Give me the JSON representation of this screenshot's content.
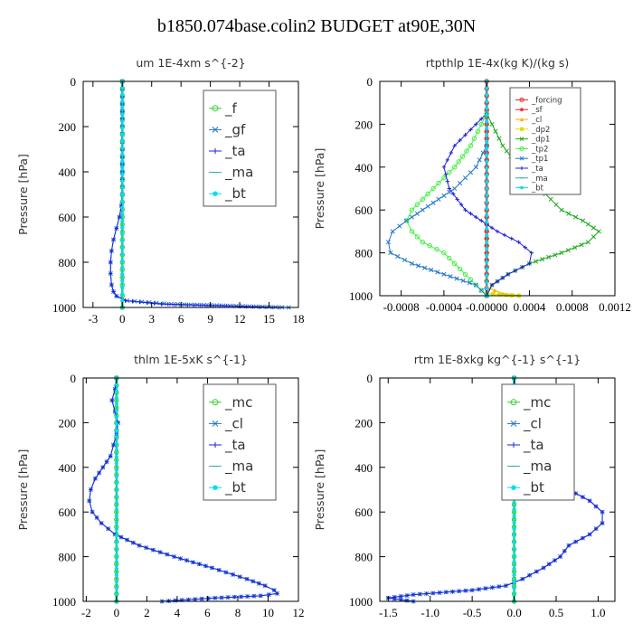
{
  "title": "b1850.074base.colin2  BUDGET at90E,30N",
  "chart_data": [
    {
      "type": "line",
      "title": "um  1E-4xm s^{-2}",
      "ylabel": "Pressure [hPa]",
      "xlim": [
        -4,
        18
      ],
      "ylim": [
        1000,
        0
      ],
      "xticks": [
        "-3",
        "0",
        "3",
        "6",
        "9",
        "12",
        "15",
        "18"
      ],
      "xtick_values": [
        -3,
        0,
        3,
        6,
        9,
        12,
        15,
        18
      ],
      "yticks": [
        "0",
        "200",
        "400",
        "600",
        "800",
        "1000"
      ],
      "legend": [
        "_f",
        "_gf",
        "_ta",
        "_ma",
        "_bt"
      ],
      "legend_size": "large",
      "series": [
        {
          "name": "_f",
          "color": "#33cc33",
          "marker": "circle",
          "p": [
            0,
            100,
            200,
            300,
            400,
            500,
            600,
            700,
            800,
            900,
            950,
            1000
          ],
          "x": [
            0,
            0,
            0,
            0,
            0,
            0,
            0,
            0,
            0,
            0,
            0,
            0
          ]
        },
        {
          "name": "_gf",
          "color": "#2277cc",
          "marker": "x",
          "p": [
            0,
            100,
            200,
            300,
            400,
            500,
            550,
            600,
            650,
            700,
            750,
            800,
            850,
            900,
            930,
            950,
            970,
            985,
            1000
          ],
          "x": [
            0,
            0,
            0,
            0,
            0,
            0,
            -0.1,
            -0.3,
            -0.6,
            -0.9,
            -1.1,
            -1.2,
            -1.2,
            -1.1,
            -0.9,
            -0.6,
            0.5,
            5,
            17
          ]
        },
        {
          "name": "_ta",
          "color": "#2222dd",
          "marker": "plus",
          "p": [
            0,
            100,
            200,
            300,
            400,
            500,
            550,
            600,
            650,
            700,
            750,
            800,
            850,
            900,
            930,
            950,
            970,
            985,
            1000
          ],
          "x": [
            0,
            0,
            0,
            0,
            0,
            0,
            -0.1,
            -0.3,
            -0.6,
            -0.9,
            -1.1,
            -1.2,
            -1.2,
            -1.1,
            -0.9,
            -0.6,
            0.3,
            4,
            16
          ]
        },
        {
          "name": "_ma",
          "color": "#33aaaa",
          "marker": "dash",
          "p": [
            0,
            500,
            1000
          ],
          "x": [
            0,
            0,
            0
          ]
        },
        {
          "name": "_bt",
          "color": "#00ddee",
          "marker": "dot",
          "p": [
            0,
            500,
            1000
          ],
          "x": [
            0,
            0,
            0
          ]
        }
      ]
    },
    {
      "type": "line",
      "title": "rtpthlp  1E-4x(kg K)/(kg s)",
      "ylabel": "Pressure [hPa]",
      "xlim": [
        -0.001,
        0.0012
      ],
      "ylim": [
        1000,
        0
      ],
      "xticks": [
        "-0.0008",
        "-0.0004",
        "-0.00000",
        "0.0004",
        "0.0008",
        "0.0012"
      ],
      "xtick_values": [
        -0.0008,
        -0.0004,
        0,
        0.0004,
        0.0008,
        0.0012
      ],
      "yticks": [
        "0",
        "200",
        "400",
        "600",
        "800",
        "1000"
      ],
      "legend": [
        "_forcing",
        "_sf",
        "_cl",
        "_dp2",
        "_dp1",
        "_tp2",
        "_tp1",
        "_ta",
        "_ma",
        "_bt"
      ],
      "legend_size": "small",
      "series": [
        {
          "name": "_forcing",
          "color": "#ee2222",
          "marker": "circle",
          "p": [
            0,
            100,
            200,
            300,
            400,
            500,
            600,
            700,
            800,
            900,
            1000
          ],
          "x": [
            0,
            0,
            0,
            0,
            0,
            0,
            0,
            0,
            0,
            0,
            0
          ]
        },
        {
          "name": "_sf",
          "color": "#ee2222",
          "marker": "star",
          "p": [
            0,
            100,
            200,
            300,
            400,
            500,
            600,
            700,
            800,
            900,
            1000
          ],
          "x": [
            0,
            0,
            0,
            0,
            0,
            0,
            0,
            0,
            0,
            0,
            0
          ]
        },
        {
          "name": "_cl",
          "color": "#ffaa00",
          "marker": "triangle",
          "p": [
            960,
            990,
            1000
          ],
          "x": [
            0,
            0.00015,
            0.0003
          ]
        },
        {
          "name": "_dp2",
          "color": "#dddd00",
          "marker": "square",
          "p": [
            990,
            1000
          ],
          "x": [
            0,
            0.0003
          ]
        },
        {
          "name": "_dp1",
          "color": "#22aa22",
          "marker": "x",
          "p": [
            150,
            200,
            300,
            400,
            500,
            600,
            650,
            700,
            750,
            800,
            850,
            900,
            950,
            1000
          ],
          "x": [
            0,
            5e-05,
            0.00015,
            0.0003,
            0.0005,
            0.0007,
            0.0009,
            0.00105,
            0.00095,
            0.0007,
            0.0004,
            0.0002,
            5e-05,
            0
          ]
        },
        {
          "name": "_tp2",
          "color": "#44ee44",
          "marker": "circle",
          "p": [
            150,
            200,
            300,
            400,
            500,
            600,
            650,
            700,
            750,
            800,
            850,
            900,
            950,
            1000
          ],
          "x": [
            0,
            -5e-05,
            -0.00015,
            -0.0003,
            -0.0005,
            -0.0007,
            -0.00075,
            -0.0007,
            -0.0006,
            -0.0004,
            -0.0003,
            -0.0002,
            -0.0001,
            0
          ]
        },
        {
          "name": "_tp1",
          "color": "#2277cc",
          "marker": "x",
          "p": [
            300,
            400,
            500,
            600,
            650,
            700,
            750,
            800,
            850,
            900,
            950,
            1000
          ],
          "x": [
            0,
            -0.0001,
            -0.0003,
            -0.0006,
            -0.00075,
            -0.00088,
            -0.00092,
            -0.0009,
            -0.0007,
            -0.0004,
            -0.0001,
            0
          ]
        },
        {
          "name": "_ta",
          "color": "#2222dd",
          "marker": "plus",
          "p": [
            150,
            200,
            300,
            400,
            500,
            600,
            700,
            750,
            800,
            850,
            900,
            950,
            1000
          ],
          "x": [
            0,
            -0.0001,
            -0.0003,
            -0.0004,
            -0.00035,
            -0.0002,
            0.0001,
            0.0003,
            0.00042,
            0.0004,
            0.0002,
            5e-05,
            0
          ]
        },
        {
          "name": "_ma",
          "color": "#33aaaa",
          "marker": "dash",
          "p": [
            0,
            500,
            1000
          ],
          "x": [
            0,
            0,
            0
          ]
        },
        {
          "name": "_bt",
          "color": "#00ddee",
          "marker": "dot",
          "p": [
            0,
            500,
            1000
          ],
          "x": [
            0,
            0,
            0
          ]
        }
      ]
    },
    {
      "type": "line",
      "title": "thlm  1E-5xK s^{-1}",
      "ylabel": "Pressure [hPa]",
      "xlim": [
        -2.2,
        12
      ],
      "ylim": [
        1000,
        0
      ],
      "xticks": [
        "-2",
        "0",
        "2",
        "4",
        "6",
        "8",
        "10",
        "12"
      ],
      "xtick_values": [
        -2,
        0,
        2,
        4,
        6,
        8,
        10,
        12
      ],
      "yticks": [
        "0",
        "200",
        "400",
        "600",
        "800",
        "1000"
      ],
      "legend": [
        "_mc",
        "_cl",
        "_ta",
        "_ma",
        "_bt"
      ],
      "legend_size": "large",
      "series": [
        {
          "name": "_mc",
          "color": "#33cc33",
          "marker": "circle",
          "p": [
            0,
            100,
            200,
            300,
            400,
            500,
            600,
            700,
            800,
            900,
            1000
          ],
          "x": [
            0,
            0,
            0,
            0,
            0,
            0,
            0,
            0,
            0,
            0,
            0
          ]
        },
        {
          "name": "_cl",
          "color": "#2277cc",
          "marker": "x",
          "p": [
            0,
            50,
            100,
            150,
            200,
            250,
            300,
            350,
            400,
            450,
            500,
            550,
            600,
            650,
            700,
            750,
            800,
            850,
            900,
            930,
            950,
            965,
            975,
            985,
            1000
          ],
          "x": [
            0,
            -0.1,
            -0.3,
            -0.1,
            0.1,
            0,
            -0.2,
            -0.4,
            -0.9,
            -1.4,
            -1.7,
            -1.8,
            -1.6,
            -1.0,
            -0.1,
            1.5,
            3.8,
            6.3,
            8.6,
            9.8,
            10.4,
            10.6,
            9.5,
            6.5,
            3.0
          ]
        },
        {
          "name": "_ta",
          "color": "#2222dd",
          "marker": "plus",
          "p": [
            0,
            50,
            100,
            150,
            200,
            250,
            300,
            350,
            400,
            450,
            500,
            550,
            600,
            650,
            700,
            750,
            800,
            850,
            900,
            930,
            950,
            965,
            975,
            985,
            1000
          ],
          "x": [
            0,
            -0.1,
            -0.3,
            -0.1,
            0.1,
            0,
            -0.2,
            -0.4,
            -0.9,
            -1.4,
            -1.7,
            -1.8,
            -1.6,
            -1.0,
            -0.1,
            1.5,
            3.8,
            6.3,
            8.6,
            9.8,
            10.4,
            10.6,
            9.5,
            6.5,
            3.0
          ]
        },
        {
          "name": "_ma",
          "color": "#33aaaa",
          "marker": "dash",
          "p": [
            0,
            500,
            1000
          ],
          "x": [
            0,
            0,
            0
          ]
        },
        {
          "name": "_bt",
          "color": "#00ddee",
          "marker": "dot",
          "p": [
            0,
            500,
            1000
          ],
          "x": [
            0,
            0,
            0
          ]
        }
      ]
    },
    {
      "type": "line",
      "title": "rtm  1E-8xkg kg^{-1} s^{-1}",
      "ylabel": "Pressure [hPa]",
      "xlim": [
        -1.6,
        1.2
      ],
      "ylim": [
        1000,
        0
      ],
      "xticks": [
        "-1.5",
        "-1.0",
        "-0.5",
        "0.0",
        "0.5",
        "1.0"
      ],
      "xtick_values": [
        -1.5,
        -1.0,
        -0.5,
        0.0,
        0.5,
        1.0
      ],
      "yticks": [
        "0",
        "200",
        "400",
        "600",
        "800",
        "1000"
      ],
      "legend": [
        "_mc",
        "_cl",
        "_ta",
        "_ma",
        "_bt"
      ],
      "legend_size": "large",
      "series": [
        {
          "name": "_mc",
          "color": "#33cc33",
          "marker": "circle",
          "p": [
            0,
            100,
            200,
            300,
            400,
            500,
            600,
            700,
            800,
            900,
            1000
          ],
          "x": [
            0,
            0,
            0,
            0,
            0,
            0,
            0,
            0,
            0,
            0,
            0
          ]
        },
        {
          "name": "_cl",
          "color": "#2277cc",
          "marker": "x",
          "p": [
            0,
            50,
            100,
            150,
            200,
            250,
            300,
            350,
            400,
            450,
            500,
            550,
            600,
            650,
            700,
            750,
            800,
            850,
            900,
            930,
            950,
            970,
            985,
            1000
          ],
          "x": [
            0,
            0.02,
            0.05,
            0.07,
            0.1,
            0.12,
            0.15,
            0.2,
            0.3,
            0.45,
            0.65,
            0.9,
            1.05,
            1.05,
            0.9,
            0.65,
            0.55,
            0.35,
            0.1,
            -0.1,
            -0.5,
            -1.2,
            -1.5,
            -1.2
          ]
        },
        {
          "name": "_ta",
          "color": "#2222dd",
          "marker": "plus",
          "p": [
            0,
            50,
            100,
            150,
            200,
            250,
            300,
            350,
            400,
            450,
            500,
            550,
            600,
            650,
            700,
            750,
            800,
            850,
            900,
            930,
            950,
            970,
            985,
            1000
          ],
          "x": [
            0,
            0.02,
            0.05,
            0.07,
            0.1,
            0.12,
            0.15,
            0.2,
            0.3,
            0.45,
            0.65,
            0.9,
            1.05,
            1.05,
            0.9,
            0.65,
            0.55,
            0.35,
            0.1,
            -0.1,
            -0.5,
            -1.2,
            -1.5,
            -1.2
          ]
        },
        {
          "name": "_ma",
          "color": "#33aaaa",
          "marker": "dash",
          "p": [
            0,
            500,
            1000
          ],
          "x": [
            0,
            0,
            0
          ]
        },
        {
          "name": "_bt",
          "color": "#00ddee",
          "marker": "dot",
          "p": [
            0,
            500,
            1000
          ],
          "x": [
            0,
            0,
            0
          ]
        }
      ]
    }
  ]
}
